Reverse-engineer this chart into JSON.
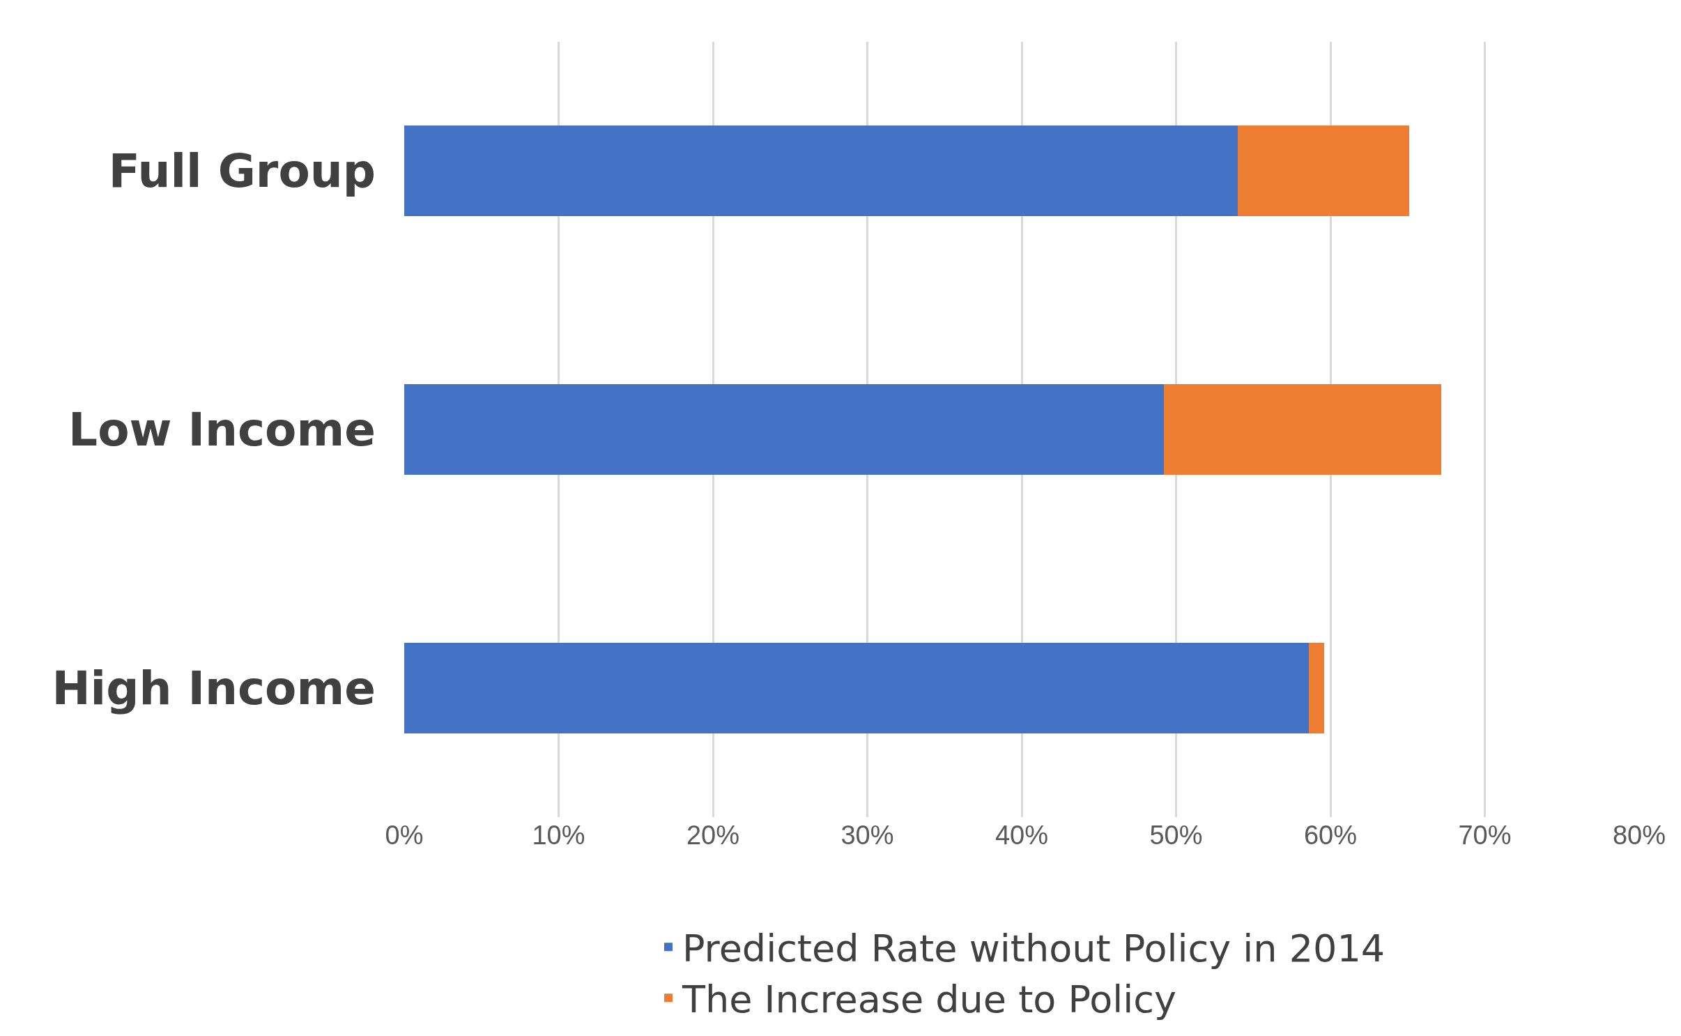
{
  "chart_data": {
    "type": "bar",
    "orientation": "horizontal",
    "stacked": true,
    "categories": [
      "Full Group",
      "Low Income",
      "High Income"
    ],
    "series": [
      {
        "name": "Predicted Rate without Policy in 2014",
        "color": "#4472c4",
        "values": [
          54.0,
          49.2,
          58.6
        ]
      },
      {
        "name": "The Increase due to Policy",
        "color": "#ed7d31",
        "values": [
          11.1,
          18.0,
          1.0
        ]
      }
    ],
    "xlim": [
      0,
      80
    ],
    "xticks": [
      {
        "value": 0,
        "label": "0%"
      },
      {
        "value": 10,
        "label": "10%"
      },
      {
        "value": 20,
        "label": "20%"
      },
      {
        "value": 30,
        "label": "30%"
      },
      {
        "value": 40,
        "label": "40%"
      },
      {
        "value": 50,
        "label": "50%"
      },
      {
        "value": 60,
        "label": "60%"
      },
      {
        "value": 70,
        "label": "70%"
      },
      {
        "value": 80,
        "label": "80%"
      }
    ],
    "grid": "x",
    "legend": "bottom"
  }
}
